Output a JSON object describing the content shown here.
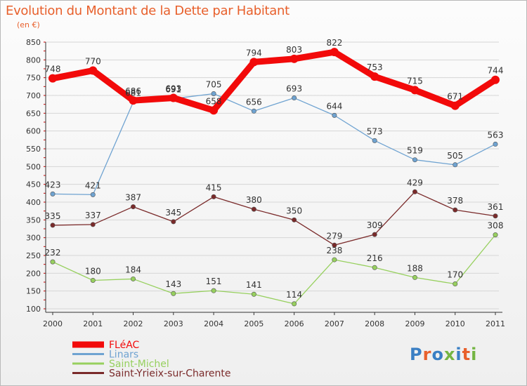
{
  "title": "Evolution du Montant de la Dette par Habitant",
  "unit": "(en €)",
  "logo_text": "Proxiti",
  "logo_colors": [
    "#3a7fc4",
    "#e8602c",
    "#3a7fc4",
    "#74b543",
    "#3a7fc4",
    "#e8602c",
    "#74b543"
  ],
  "chart_data": {
    "type": "line",
    "title": "Evolution du Montant de la Dette par Habitant",
    "ylabel": "(en €)",
    "ylim": [
      100,
      850
    ],
    "yticks": [
      100,
      150,
      200,
      250,
      300,
      350,
      400,
      450,
      500,
      550,
      600,
      650,
      700,
      750,
      800,
      850
    ],
    "categories": [
      "2000",
      "2001",
      "2002",
      "2003",
      "2004",
      "2005",
      "2006",
      "2007",
      "2008",
      "2009",
      "2010",
      "2011"
    ],
    "series": [
      {
        "name": "FLéAC",
        "color": "#f20a0a",
        "values": [
          748,
          770,
          686,
          693,
          658,
          794,
          803,
          822,
          753,
          715,
          671,
          744
        ]
      },
      {
        "name": "Linars",
        "color": "#6fa3d1",
        "values": [
          423,
          421,
          681,
          691,
          705,
          656,
          693,
          644,
          573,
          519,
          505,
          563
        ]
      },
      {
        "name": "Saint-Michel",
        "color": "#97d05e",
        "values": [
          232,
          180,
          184,
          143,
          151,
          141,
          114,
          238,
          216,
          188,
          170,
          308
        ]
      },
      {
        "name": "Saint-Yrieix-sur-Charente",
        "color": "#7a2a2a",
        "values": [
          335,
          337,
          387,
          345,
          415,
          380,
          350,
          279,
          309,
          429,
          378,
          361
        ]
      }
    ]
  }
}
